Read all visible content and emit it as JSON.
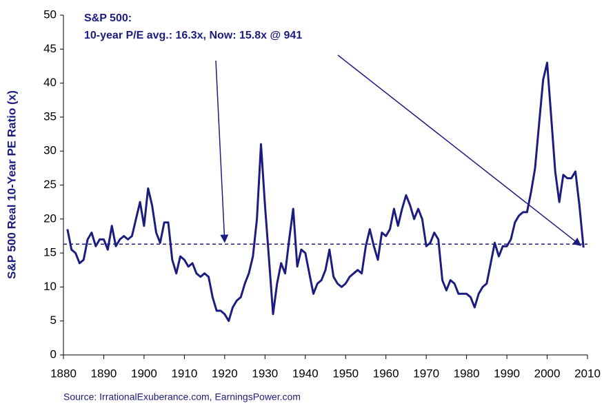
{
  "chart_data": {
    "type": "line",
    "annotation": [
      "S&P 500:",
      "10-year P/E avg.: 16.3x, Now: 15.8x @ 941"
    ],
    "y_label": "S&P 500 Real 10-Year PE Ratio (x)",
    "source": "Source: IrrationalExuberance.com, EarningsPower.com",
    "xlim": [
      1880,
      2010
    ],
    "xticks": [
      1880,
      1890,
      1900,
      1910,
      1920,
      1930,
      1940,
      1950,
      1960,
      1970,
      1980,
      1990,
      2000,
      2010
    ],
    "ylim": [
      0,
      50
    ],
    "yticks": [
      0,
      5,
      10,
      15,
      20,
      25,
      30,
      35,
      40,
      45,
      50
    ],
    "average": 16.3,
    "series": [
      {
        "name": "S&P 500 Real 10-Year PE Ratio",
        "color": "#1c1c80",
        "x": [
          1881,
          1882,
          1883,
          1884,
          1885,
          1886,
          1887,
          1888,
          1889,
          1890,
          1891,
          1892,
          1893,
          1894,
          1895,
          1896,
          1897,
          1898,
          1899,
          1900,
          1901,
          1902,
          1903,
          1904,
          1905,
          1906,
          1907,
          1908,
          1909,
          1910,
          1911,
          1912,
          1913,
          1914,
          1915,
          1916,
          1917,
          1918,
          1919,
          1920,
          1921,
          1922,
          1923,
          1924,
          1925,
          1926,
          1927,
          1928,
          1929,
          1930,
          1931,
          1932,
          1933,
          1934,
          1935,
          1936,
          1937,
          1938,
          1939,
          1940,
          1941,
          1942,
          1943,
          1944,
          1945,
          1946,
          1947,
          1948,
          1949,
          1950,
          1951,
          1952,
          1953,
          1954,
          1955,
          1956,
          1957,
          1958,
          1959,
          1960,
          1961,
          1962,
          1963,
          1964,
          1965,
          1966,
          1967,
          1968,
          1969,
          1970,
          1971,
          1972,
          1973,
          1974,
          1975,
          1976,
          1977,
          1978,
          1979,
          1980,
          1981,
          1982,
          1983,
          1984,
          1985,
          1986,
          1987,
          1988,
          1989,
          1990,
          1991,
          1992,
          1993,
          1994,
          1995,
          1996,
          1997,
          1998,
          1999,
          2000,
          2001,
          2002,
          2003,
          2004,
          2005,
          2006,
          2007,
          2008,
          2009
        ],
        "values": [
          18.5,
          15.5,
          15,
          13.5,
          14,
          17,
          18,
          16,
          17,
          17,
          15.5,
          19,
          16,
          17,
          17.5,
          17,
          17.5,
          20,
          22.5,
          19,
          24.5,
          22,
          18,
          16.5,
          19.5,
          19.5,
          14,
          12,
          14.5,
          14,
          13,
          13.5,
          12,
          11.5,
          12,
          11.5,
          8.5,
          6.5,
          6.5,
          6,
          5,
          7,
          8,
          8.5,
          10.5,
          12,
          14.5,
          20,
          31,
          22,
          14,
          6,
          10.5,
          13.5,
          12,
          17,
          21.5,
          13,
          15.5,
          15,
          12,
          9,
          10.5,
          11,
          12.5,
          15.5,
          11.5,
          10.5,
          10,
          10.5,
          11.5,
          12,
          12.5,
          12,
          16,
          18.5,
          16,
          14,
          18,
          17.5,
          18.5,
          21.5,
          19,
          21.5,
          23.5,
          22,
          20,
          21.5,
          20,
          16,
          16.5,
          18,
          17,
          11,
          9.5,
          11,
          10.5,
          9,
          9,
          9,
          8.5,
          7,
          9,
          10,
          10.5,
          13.5,
          16.5,
          14.5,
          16,
          16,
          17,
          19.5,
          20.5,
          21,
          21,
          24,
          27.5,
          34,
          40.5,
          43,
          35,
          27,
          22.5,
          26.5,
          26,
          26,
          27,
          22,
          15.8
        ]
      }
    ]
  }
}
